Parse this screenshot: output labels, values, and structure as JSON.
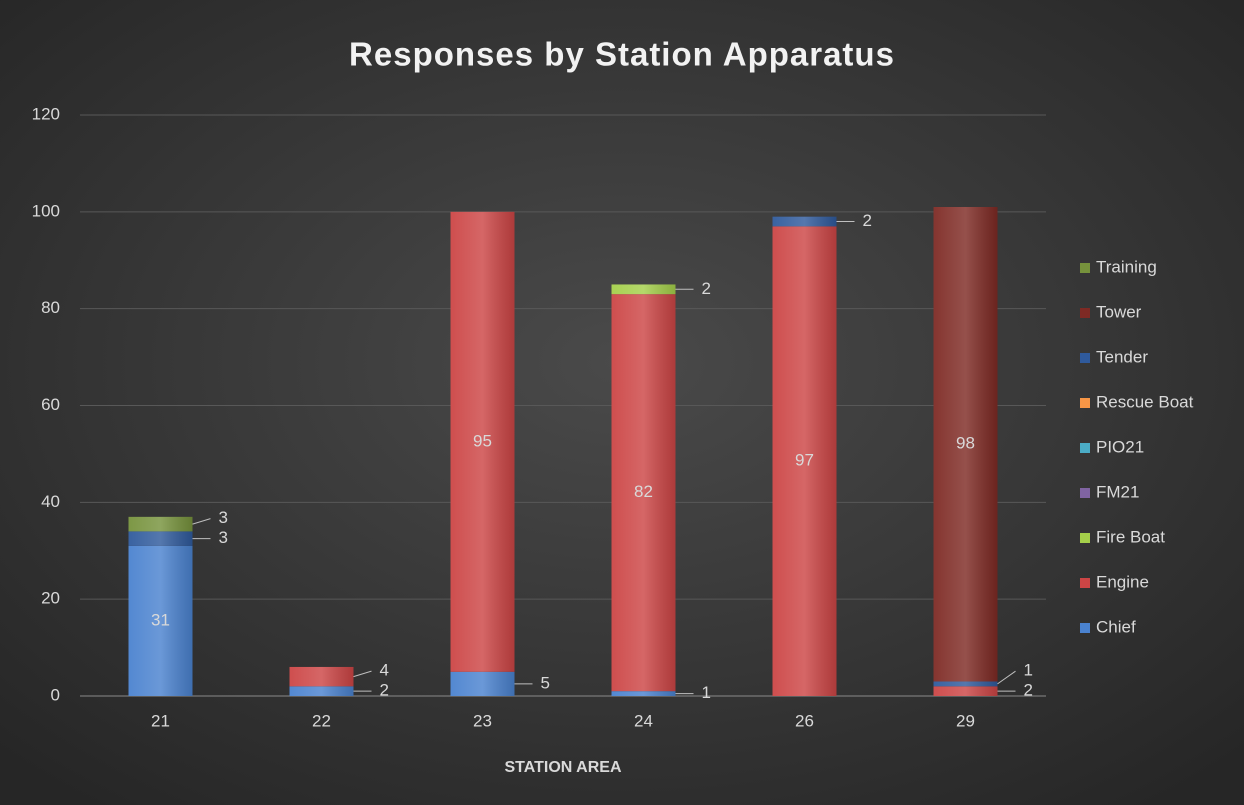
{
  "chart_data": {
    "type": "stacked_bar",
    "title": "Responses by Station Apparatus",
    "x_label": "STATION AREA",
    "categories": [
      "21",
      "22",
      "23",
      "24",
      "26",
      "29"
    ],
    "series": [
      {
        "name": "Chief",
        "color": "#4a82cf",
        "values": [
          31,
          2,
          5,
          1,
          null,
          null
        ]
      },
      {
        "name": "Engine",
        "color": "#cc4545",
        "values": [
          null,
          4,
          95,
          82,
          97,
          2
        ]
      },
      {
        "name": "Fire Boat",
        "color": "#a4cf4a",
        "values": [
          null,
          null,
          null,
          2,
          null,
          null
        ]
      },
      {
        "name": "FM21",
        "color": "#8064a2",
        "values": [
          null,
          null,
          null,
          null,
          null,
          null
        ]
      },
      {
        "name": "PIO21",
        "color": "#4bacc6",
        "values": [
          null,
          null,
          null,
          null,
          null,
          null
        ]
      },
      {
        "name": "Rescue Boat",
        "color": "#f79646",
        "values": [
          null,
          null,
          null,
          null,
          null,
          null
        ]
      },
      {
        "name": "Tender",
        "color": "#2f5a9c",
        "values": [
          3,
          null,
          null,
          null,
          2,
          1
        ]
      },
      {
        "name": "Tower",
        "color": "#7e2a24",
        "values": [
          null,
          null,
          null,
          null,
          null,
          98
        ]
      },
      {
        "name": "Training",
        "color": "#76923c",
        "values": [
          3,
          null,
          null,
          null,
          null,
          null
        ]
      }
    ],
    "ylim": [
      0,
      120
    ],
    "yticks": [
      0,
      20,
      40,
      60,
      80,
      100,
      120
    ],
    "grid": true,
    "legend": "right"
  }
}
